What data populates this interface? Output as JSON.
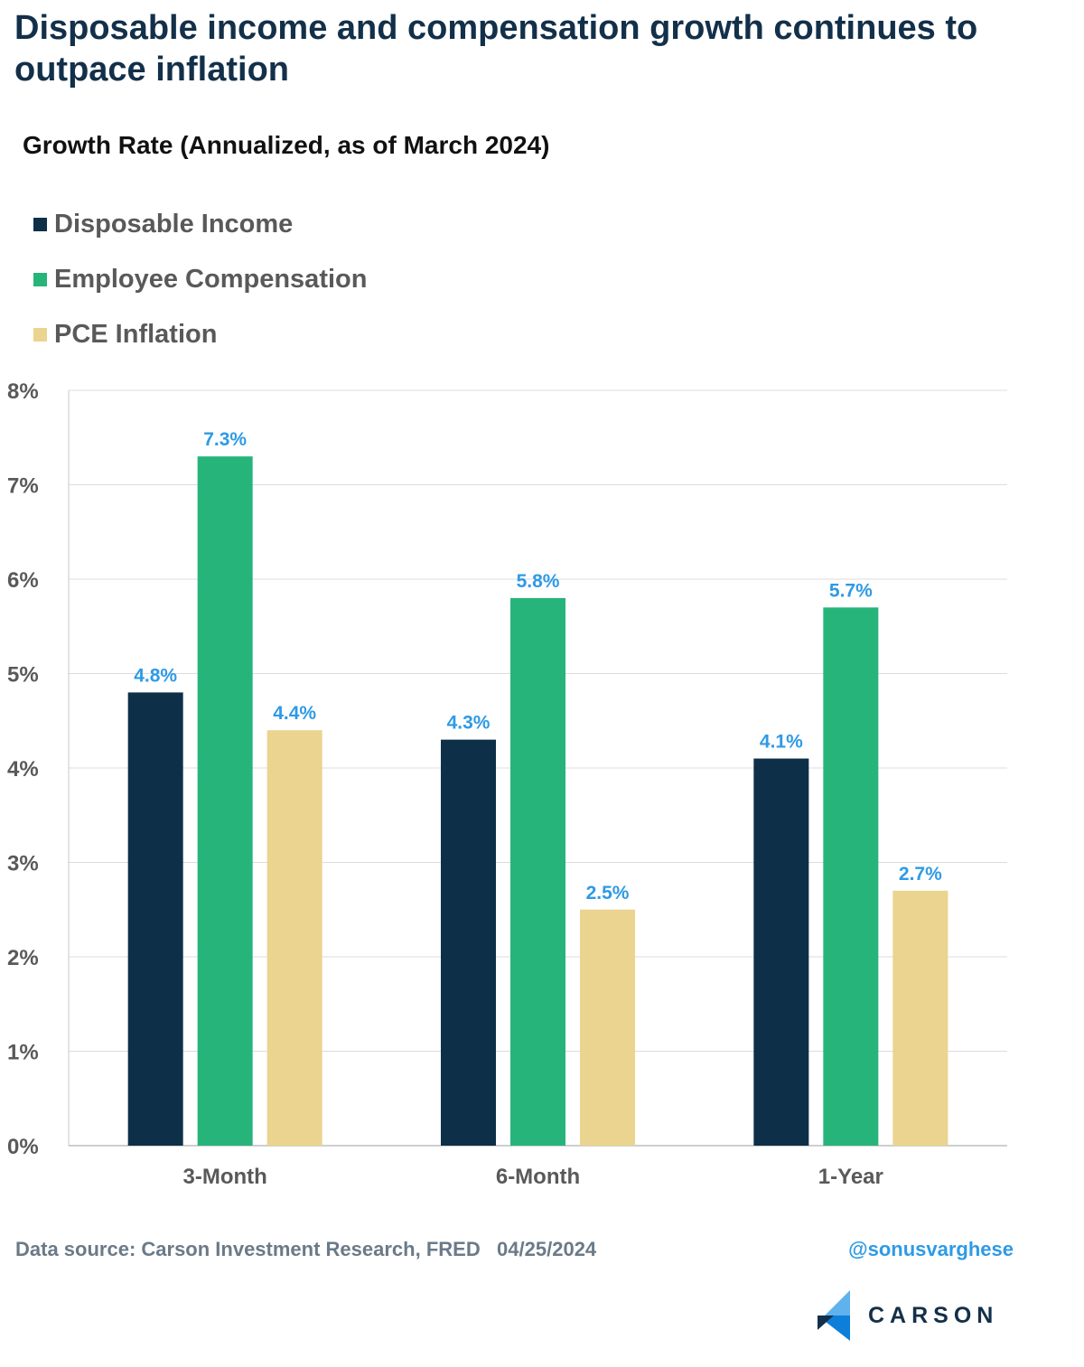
{
  "chart_data": {
    "type": "bar",
    "title": "Disposable income and compensation growth continues to outpace inflation",
    "subtitle": "Growth Rate (Annualized, as of March 2024)",
    "categories": [
      "3-Month",
      "6-Month",
      "1-Year"
    ],
    "series": [
      {
        "name": "Disposable Income",
        "color": "#0e2f48",
        "values": [
          4.8,
          4.3,
          4.1
        ],
        "labels": [
          "4.8%",
          "4.3%",
          "4.1%"
        ]
      },
      {
        "name": "Employee Compensation",
        "color": "#27b47b",
        "values": [
          7.3,
          5.8,
          5.7
        ],
        "labels": [
          "7.3%",
          "5.8%",
          "5.7%"
        ]
      },
      {
        "name": "PCE Inflation",
        "color": "#ead48f",
        "values": [
          4.4,
          2.5,
          2.7
        ],
        "labels": [
          "4.4%",
          "2.5%",
          "2.7%"
        ]
      }
    ],
    "yticks": [
      "0%",
      "1%",
      "2%",
      "3%",
      "4%",
      "5%",
      "6%",
      "7%",
      "8%"
    ],
    "ylim": [
      0,
      8
    ],
    "grid": true,
    "legend": "top-left",
    "xlabel": "",
    "ylabel": ""
  },
  "footer": {
    "source": "Data source: Carson Investment Research, FRED   04/25/2024",
    "handle": "@sonusvarghese"
  },
  "logo": {
    "text": "CARSON"
  }
}
